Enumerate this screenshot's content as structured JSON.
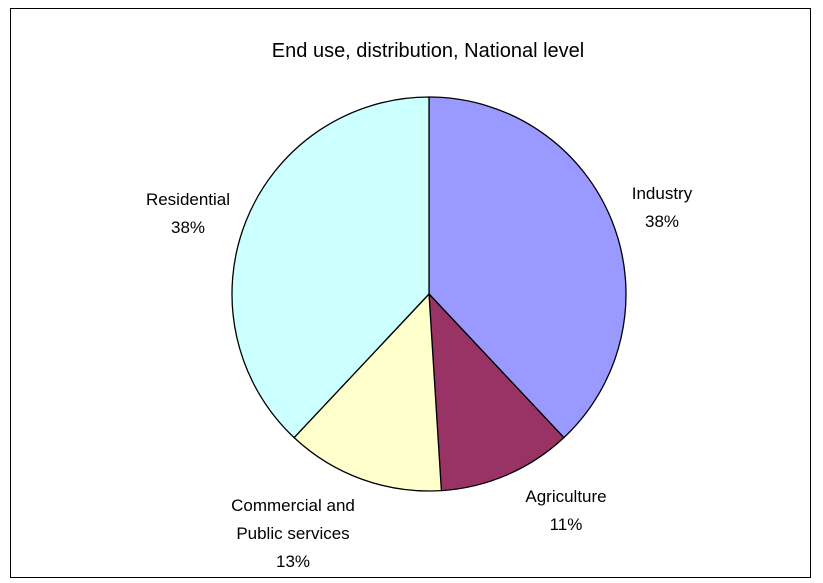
{
  "chart_data": {
    "type": "pie",
    "title": "End use, distribution, National level",
    "slices": [
      {
        "name": "Industry",
        "percent_label": "38%",
        "value": 38,
        "color": "#9999ff"
      },
      {
        "name": "Agriculture",
        "percent_label": "11%",
        "value": 11,
        "color": "#993366"
      },
      {
        "name": "Commercial and Public services",
        "percent_label": "13%",
        "value": 13,
        "color": "#ffffcc"
      },
      {
        "name": "Residential",
        "percent_label": "38%",
        "value": 38,
        "color": "#ccffff"
      }
    ],
    "label_lines": [
      {
        "slice": 0,
        "lines": [
          "Industry",
          "38%"
        ]
      },
      {
        "slice": 1,
        "lines": [
          "Agriculture",
          "11%"
        ]
      },
      {
        "slice": 2,
        "lines": [
          "Commercial and",
          "Public services",
          "13%"
        ]
      },
      {
        "slice": 3,
        "lines": [
          "Residential",
          "38%"
        ]
      }
    ],
    "legend": "none",
    "start_angle": "12 o'clock",
    "direction": "clockwise"
  }
}
